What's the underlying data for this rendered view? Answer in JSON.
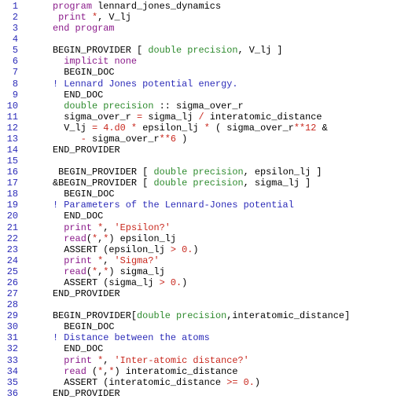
{
  "colors": {
    "background": "#ffffff",
    "line_number": "#2b2bb8",
    "plain": "#000000",
    "keyword": "#8a1a8a",
    "type": "#2e8b2e",
    "string": "#c8281e",
    "operator": "#c8281e",
    "number": "#c8281e",
    "comment": "#2b2bb8"
  },
  "lines": [
    {
      "num": "1",
      "segs": [
        {
          "c": "kw",
          "t": "program "
        },
        {
          "c": "plain",
          "t": "lennard_jones_dynamics"
        }
      ]
    },
    {
      "num": "2",
      "segs": [
        {
          "c": "kw",
          "t": " print "
        },
        {
          "c": "op",
          "t": "*"
        },
        {
          "c": "plain",
          "t": ", V_lj"
        }
      ]
    },
    {
      "num": "3",
      "segs": [
        {
          "c": "kw",
          "t": "end program"
        }
      ]
    },
    {
      "num": "4",
      "segs": []
    },
    {
      "num": "5",
      "segs": [
        {
          "c": "plain",
          "t": "BEGIN_PROVIDER [ "
        },
        {
          "c": "type",
          "t": "double precision"
        },
        {
          "c": "plain",
          "t": ", V_lj ]"
        }
      ]
    },
    {
      "num": "6",
      "segs": [
        {
          "c": "plain",
          "t": "  "
        },
        {
          "c": "kw",
          "t": "implicit none"
        }
      ]
    },
    {
      "num": "7",
      "segs": [
        {
          "c": "plain",
          "t": "  BEGIN_DOC"
        }
      ]
    },
    {
      "num": "8",
      "segs": [
        {
          "c": "cmt",
          "t": "! Lennard Jones potential energy."
        }
      ]
    },
    {
      "num": "9",
      "segs": [
        {
          "c": "plain",
          "t": "  END_DOC"
        }
      ]
    },
    {
      "num": "10",
      "segs": [
        {
          "c": "plain",
          "t": "  "
        },
        {
          "c": "type",
          "t": "double precision"
        },
        {
          "c": "plain",
          "t": " :: sigma_over_r"
        }
      ]
    },
    {
      "num": "11",
      "segs": [
        {
          "c": "plain",
          "t": "  sigma_over_r "
        },
        {
          "c": "op",
          "t": "="
        },
        {
          "c": "plain",
          "t": " sigma_lj "
        },
        {
          "c": "op",
          "t": "/"
        },
        {
          "c": "plain",
          "t": " interatomic_distance"
        }
      ]
    },
    {
      "num": "12",
      "segs": [
        {
          "c": "plain",
          "t": "  V_lj "
        },
        {
          "c": "op",
          "t": "="
        },
        {
          "c": "plain",
          "t": " "
        },
        {
          "c": "num",
          "t": "4.d0"
        },
        {
          "c": "plain",
          "t": " "
        },
        {
          "c": "op",
          "t": "*"
        },
        {
          "c": "plain",
          "t": " epsilon_lj "
        },
        {
          "c": "op",
          "t": "*"
        },
        {
          "c": "plain",
          "t": " ( sigma_over_r"
        },
        {
          "c": "op",
          "t": "**"
        },
        {
          "c": "num",
          "t": "12"
        },
        {
          "c": "plain",
          "t": " &"
        }
      ]
    },
    {
      "num": "13",
      "segs": [
        {
          "c": "plain",
          "t": "     "
        },
        {
          "c": "op",
          "t": "-"
        },
        {
          "c": "plain",
          "t": " sigma_over_r"
        },
        {
          "c": "op",
          "t": "**"
        },
        {
          "c": "num",
          "t": "6"
        },
        {
          "c": "plain",
          "t": " )"
        }
      ]
    },
    {
      "num": "14",
      "segs": [
        {
          "c": "plain",
          "t": "END_PROVIDER"
        }
      ]
    },
    {
      "num": "15",
      "segs": []
    },
    {
      "num": "16",
      "segs": [
        {
          "c": "plain",
          "t": " BEGIN_PROVIDER [ "
        },
        {
          "c": "type",
          "t": "double precision"
        },
        {
          "c": "plain",
          "t": ", epsilon_lj ]"
        }
      ]
    },
    {
      "num": "17",
      "segs": [
        {
          "c": "plain",
          "t": "&BEGIN_PROVIDER [ "
        },
        {
          "c": "type",
          "t": "double precision"
        },
        {
          "c": "plain",
          "t": ", sigma_lj ]"
        }
      ]
    },
    {
      "num": "18",
      "segs": [
        {
          "c": "plain",
          "t": "  BEGIN_DOC"
        }
      ]
    },
    {
      "num": "19",
      "segs": [
        {
          "c": "cmt",
          "t": "! Parameters of the Lennard-Jones potential"
        }
      ]
    },
    {
      "num": "20",
      "segs": [
        {
          "c": "plain",
          "t": "  END_DOC"
        }
      ]
    },
    {
      "num": "21",
      "segs": [
        {
          "c": "plain",
          "t": "  "
        },
        {
          "c": "kw",
          "t": "print"
        },
        {
          "c": "plain",
          "t": " "
        },
        {
          "c": "op",
          "t": "*"
        },
        {
          "c": "plain",
          "t": ", "
        },
        {
          "c": "str",
          "t": "'Epsilon?'"
        }
      ]
    },
    {
      "num": "22",
      "segs": [
        {
          "c": "plain",
          "t": "  "
        },
        {
          "c": "kw",
          "t": "read"
        },
        {
          "c": "plain",
          "t": "("
        },
        {
          "c": "op",
          "t": "*"
        },
        {
          "c": "plain",
          "t": ","
        },
        {
          "c": "op",
          "t": "*"
        },
        {
          "c": "plain",
          "t": ") epsilon_lj"
        }
      ]
    },
    {
      "num": "23",
      "segs": [
        {
          "c": "plain",
          "t": "  ASSERT (epsilon_lj "
        },
        {
          "c": "op",
          "t": ">"
        },
        {
          "c": "plain",
          "t": " "
        },
        {
          "c": "num",
          "t": "0."
        },
        {
          "c": "plain",
          "t": ")"
        }
      ]
    },
    {
      "num": "24",
      "segs": [
        {
          "c": "plain",
          "t": "  "
        },
        {
          "c": "kw",
          "t": "print"
        },
        {
          "c": "plain",
          "t": " "
        },
        {
          "c": "op",
          "t": "*"
        },
        {
          "c": "plain",
          "t": ", "
        },
        {
          "c": "str",
          "t": "'Sigma?'"
        }
      ]
    },
    {
      "num": "25",
      "segs": [
        {
          "c": "plain",
          "t": "  "
        },
        {
          "c": "kw",
          "t": "read"
        },
        {
          "c": "plain",
          "t": "("
        },
        {
          "c": "op",
          "t": "*"
        },
        {
          "c": "plain",
          "t": ","
        },
        {
          "c": "op",
          "t": "*"
        },
        {
          "c": "plain",
          "t": ") sigma_lj"
        }
      ]
    },
    {
      "num": "26",
      "segs": [
        {
          "c": "plain",
          "t": "  ASSERT (sigma_lj "
        },
        {
          "c": "op",
          "t": ">"
        },
        {
          "c": "plain",
          "t": " "
        },
        {
          "c": "num",
          "t": "0."
        },
        {
          "c": "plain",
          "t": ")"
        }
      ]
    },
    {
      "num": "27",
      "segs": [
        {
          "c": "plain",
          "t": "END_PROVIDER"
        }
      ]
    },
    {
      "num": "28",
      "segs": []
    },
    {
      "num": "29",
      "segs": [
        {
          "c": "plain",
          "t": "BEGIN_PROVIDER["
        },
        {
          "c": "type",
          "t": "double precision"
        },
        {
          "c": "plain",
          "t": ",interatomic_distance]"
        }
      ]
    },
    {
      "num": "30",
      "segs": [
        {
          "c": "plain",
          "t": "  BEGIN_DOC"
        }
      ]
    },
    {
      "num": "31",
      "segs": [
        {
          "c": "cmt",
          "t": "! Distance between the atoms"
        }
      ]
    },
    {
      "num": "32",
      "segs": [
        {
          "c": "plain",
          "t": "  END_DOC"
        }
      ]
    },
    {
      "num": "33",
      "segs": [
        {
          "c": "plain",
          "t": "  "
        },
        {
          "c": "kw",
          "t": "print"
        },
        {
          "c": "plain",
          "t": " "
        },
        {
          "c": "op",
          "t": "*"
        },
        {
          "c": "plain",
          "t": ", "
        },
        {
          "c": "str",
          "t": "'Inter-atomic distance?'"
        }
      ]
    },
    {
      "num": "34",
      "segs": [
        {
          "c": "plain",
          "t": "  "
        },
        {
          "c": "kw",
          "t": "read"
        },
        {
          "c": "plain",
          "t": " ("
        },
        {
          "c": "op",
          "t": "*"
        },
        {
          "c": "plain",
          "t": ","
        },
        {
          "c": "op",
          "t": "*"
        },
        {
          "c": "plain",
          "t": ") interatomic_distance"
        }
      ]
    },
    {
      "num": "35",
      "segs": [
        {
          "c": "plain",
          "t": "  ASSERT (interatomic_distance "
        },
        {
          "c": "op",
          "t": ">="
        },
        {
          "c": "plain",
          "t": " "
        },
        {
          "c": "num",
          "t": "0."
        },
        {
          "c": "plain",
          "t": ")"
        }
      ]
    },
    {
      "num": "36",
      "segs": [
        {
          "c": "plain",
          "t": "END_PROVIDER"
        }
      ]
    }
  ]
}
